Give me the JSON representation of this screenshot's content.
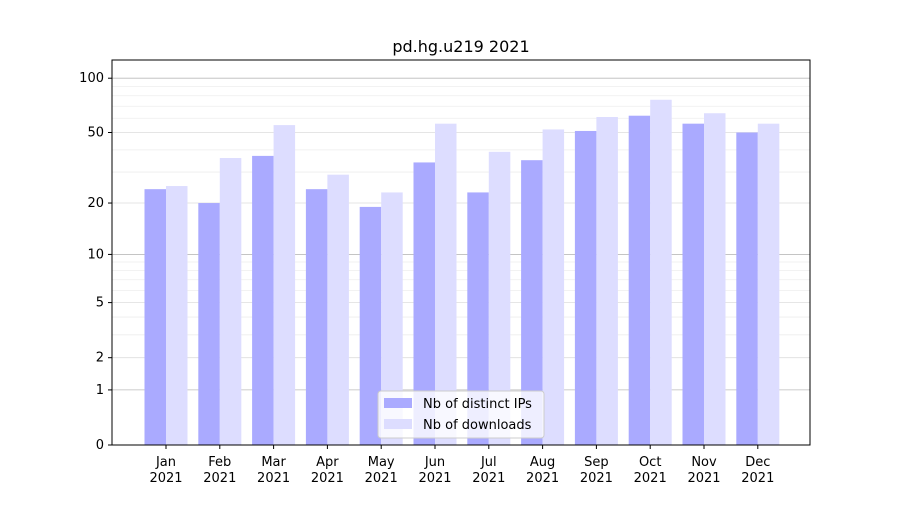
{
  "chart_data": {
    "type": "bar",
    "title": "pd.hg.u219 2021",
    "xlabel": "",
    "ylabel": "",
    "yscale": "log(1+y)",
    "ylim": [
      0,
      126
    ],
    "yticks": [
      0,
      1,
      2,
      5,
      10,
      20,
      50,
      100
    ],
    "grid": true,
    "legend_placement": "bottom-center",
    "categories": [
      "Jan\n2021",
      "Feb\n2021",
      "Mar\n2021",
      "Apr\n2021",
      "May\n2021",
      "Jun\n2021",
      "Jul\n2021",
      "Aug\n2021",
      "Sep\n2021",
      "Oct\n2021",
      "Nov\n2021",
      "Dec\n2021"
    ],
    "series": [
      {
        "name": "Nb of distinct IPs",
        "color": "#aaaaff",
        "values": [
          24,
          20,
          37,
          24,
          19,
          34,
          23,
          35,
          51,
          62,
          56,
          50
        ]
      },
      {
        "name": "Nb of downloads",
        "color": "#ddddff",
        "values": [
          25,
          36,
          55,
          29,
          23,
          56,
          39,
          52,
          61,
          76,
          64,
          56
        ]
      }
    ]
  }
}
